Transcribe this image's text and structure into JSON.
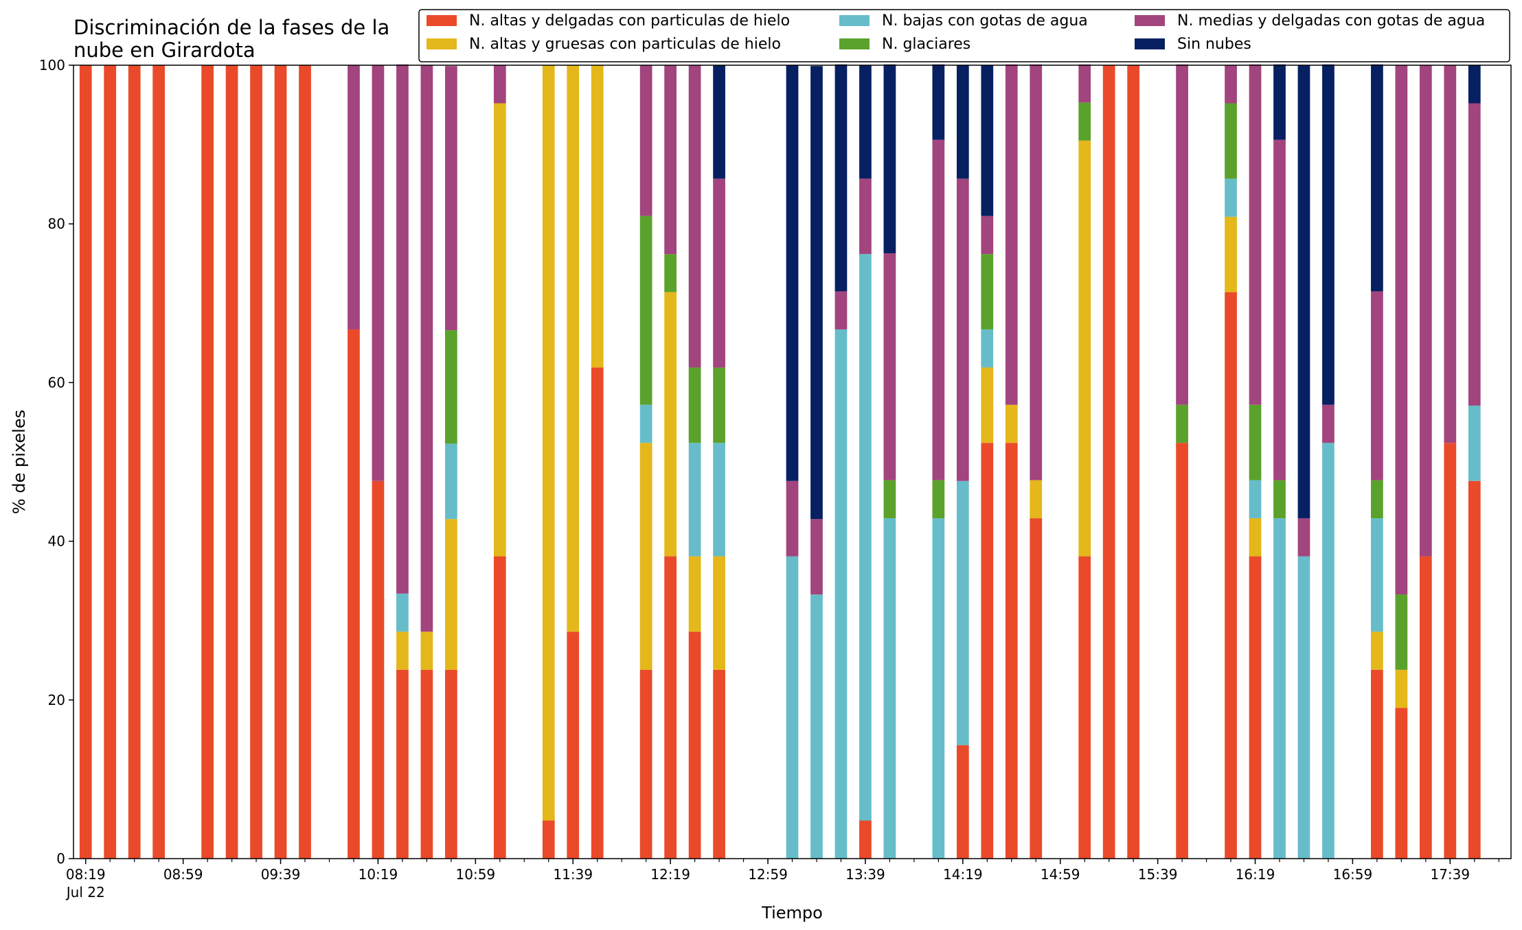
{
  "chart_data": {
    "type": "bar",
    "stacked": true,
    "title_lines": [
      "Discriminación de la fases de la",
      "nube en Girardota"
    ],
    "xlabel": "Tiempo",
    "ylabel": "% de pixeles",
    "ylim": [
      0,
      100
    ],
    "yticks": [
      0,
      20,
      40,
      60,
      80,
      100
    ],
    "xlim": [
      "08:14",
      "18:04"
    ],
    "x_tick_labels": [
      "08:19",
      "08:59",
      "09:39",
      "10:19",
      "10:59",
      "11:39",
      "12:19",
      "12:59",
      "13:39",
      "14:19",
      "14:59",
      "15:39",
      "16:19",
      "16:59",
      "17:39"
    ],
    "x_tick_sublabel": "Jul 22",
    "x_minor_tick_interval_minutes": 10,
    "legend_position": "top",
    "bar_width_minutes": 5,
    "series": [
      {
        "name": "N. altas y delgadas con particulas de hielo",
        "color": "#ea4a2a"
      },
      {
        "name": "N. altas y gruesas con particulas de hielo",
        "color": "#e4b71a"
      },
      {
        "name": "N. bajas con gotas de agua",
        "color": "#66bdc9"
      },
      {
        "name": "N. glaciares",
        "color": "#5ba22c"
      },
      {
        "name": "N. medias y delgadas con gotas de agua",
        "color": "#a2447e"
      },
      {
        "name": "Sin nubes",
        "color": "#062062"
      }
    ],
    "bars": [
      {
        "time": "08:19",
        "values": [
          100,
          0,
          0,
          0,
          0,
          0
        ]
      },
      {
        "time": "08:29",
        "values": [
          100,
          0,
          0,
          0,
          0,
          0
        ]
      },
      {
        "time": "08:39",
        "values": [
          100,
          0,
          0,
          0,
          0,
          0
        ]
      },
      {
        "time": "08:49",
        "values": [
          100,
          0,
          0,
          0,
          0,
          0
        ]
      },
      {
        "time": "09:09",
        "values": [
          100,
          0,
          0,
          0,
          0,
          0
        ]
      },
      {
        "time": "09:19",
        "values": [
          100,
          0,
          0,
          0,
          0,
          0
        ]
      },
      {
        "time": "09:29",
        "values": [
          100,
          0,
          0,
          0,
          0,
          0
        ]
      },
      {
        "time": "09:39",
        "values": [
          100,
          0,
          0,
          0,
          0,
          0
        ]
      },
      {
        "time": "09:49",
        "values": [
          100,
          0,
          0,
          0,
          0,
          0
        ]
      },
      {
        "time": "10:09",
        "values": [
          66.7,
          0,
          0,
          0,
          33.3,
          0
        ]
      },
      {
        "time": "10:19",
        "values": [
          47.6,
          0,
          0,
          0,
          52.4,
          0
        ]
      },
      {
        "time": "10:29",
        "values": [
          23.8,
          4.8,
          4.8,
          0,
          66.7,
          0
        ]
      },
      {
        "time": "10:39",
        "values": [
          23.8,
          4.8,
          0,
          0,
          71.4,
          0
        ]
      },
      {
        "time": "10:49",
        "values": [
          23.8,
          19.0,
          9.5,
          14.3,
          33.3,
          0
        ]
      },
      {
        "time": "11:09",
        "values": [
          38.1,
          57.1,
          0,
          0,
          4.8,
          0
        ]
      },
      {
        "time": "11:29",
        "values": [
          4.8,
          95.2,
          0,
          0,
          0,
          0
        ]
      },
      {
        "time": "11:39",
        "values": [
          28.6,
          71.4,
          0,
          0,
          0,
          0
        ]
      },
      {
        "time": "11:49",
        "values": [
          61.9,
          38.1,
          0,
          0,
          0,
          0
        ]
      },
      {
        "time": "12:09",
        "values": [
          23.8,
          28.6,
          4.8,
          23.8,
          19.0,
          0
        ]
      },
      {
        "time": "12:19",
        "values": [
          38.1,
          33.3,
          0,
          4.8,
          23.8,
          0
        ]
      },
      {
        "time": "12:29",
        "values": [
          28.6,
          9.5,
          14.3,
          9.5,
          38.1,
          0
        ]
      },
      {
        "time": "12:39",
        "values": [
          23.8,
          14.3,
          14.3,
          9.5,
          23.8,
          14.3
        ]
      },
      {
        "time": "13:09",
        "values": [
          0,
          0,
          38.1,
          0,
          9.5,
          52.4
        ]
      },
      {
        "time": "13:19",
        "values": [
          0,
          0,
          33.3,
          0,
          9.5,
          57.1
        ]
      },
      {
        "time": "13:29",
        "values": [
          0,
          0,
          66.7,
          0,
          4.8,
          28.6
        ]
      },
      {
        "time": "13:39",
        "values": [
          4.8,
          0,
          71.4,
          0,
          9.5,
          14.3
        ]
      },
      {
        "time": "13:49",
        "values": [
          0,
          0,
          42.9,
          4.8,
          28.6,
          23.8
        ]
      },
      {
        "time": "14:09",
        "values": [
          0,
          0,
          42.9,
          4.8,
          42.9,
          9.5
        ]
      },
      {
        "time": "14:19",
        "values": [
          14.3,
          0,
          33.3,
          0,
          38.1,
          14.3
        ]
      },
      {
        "time": "14:29",
        "values": [
          52.4,
          9.5,
          4.8,
          9.5,
          4.8,
          19.0
        ]
      },
      {
        "time": "14:39",
        "values": [
          52.4,
          4.8,
          0,
          0,
          42.9,
          0
        ]
      },
      {
        "time": "14:49",
        "values": [
          42.9,
          4.8,
          0,
          0,
          52.4,
          0
        ]
      },
      {
        "time": "15:09",
        "values": [
          38.1,
          52.4,
          0,
          4.8,
          4.8,
          0
        ]
      },
      {
        "time": "15:19",
        "values": [
          100,
          0,
          0,
          0,
          0,
          0
        ]
      },
      {
        "time": "15:29",
        "values": [
          100,
          0,
          0,
          0,
          0,
          0
        ]
      },
      {
        "time": "15:49",
        "values": [
          52.4,
          0,
          0,
          4.8,
          42.9,
          0
        ]
      },
      {
        "time": "16:09",
        "values": [
          71.4,
          9.5,
          4.8,
          9.5,
          4.8,
          0
        ]
      },
      {
        "time": "16:19",
        "values": [
          38.1,
          4.8,
          4.8,
          9.5,
          42.9,
          0
        ]
      },
      {
        "time": "16:29",
        "values": [
          0,
          0,
          42.9,
          4.8,
          42.9,
          9.5
        ]
      },
      {
        "time": "16:39",
        "values": [
          0,
          0,
          38.1,
          0,
          4.8,
          57.1
        ]
      },
      {
        "time": "16:49",
        "values": [
          0,
          0,
          52.4,
          0,
          4.8,
          42.9
        ]
      },
      {
        "time": "17:09",
        "values": [
          23.8,
          4.8,
          14.3,
          4.8,
          23.8,
          28.6
        ]
      },
      {
        "time": "17:19",
        "values": [
          19.0,
          4.8,
          0,
          9.5,
          66.7,
          0
        ]
      },
      {
        "time": "17:29",
        "values": [
          38.1,
          0,
          0,
          0,
          61.9,
          0
        ]
      },
      {
        "time": "17:39",
        "values": [
          52.4,
          0,
          0,
          0,
          47.6,
          0
        ]
      },
      {
        "time": "17:49",
        "values": [
          47.6,
          0,
          9.5,
          0,
          38.1,
          4.8
        ]
      }
    ]
  }
}
